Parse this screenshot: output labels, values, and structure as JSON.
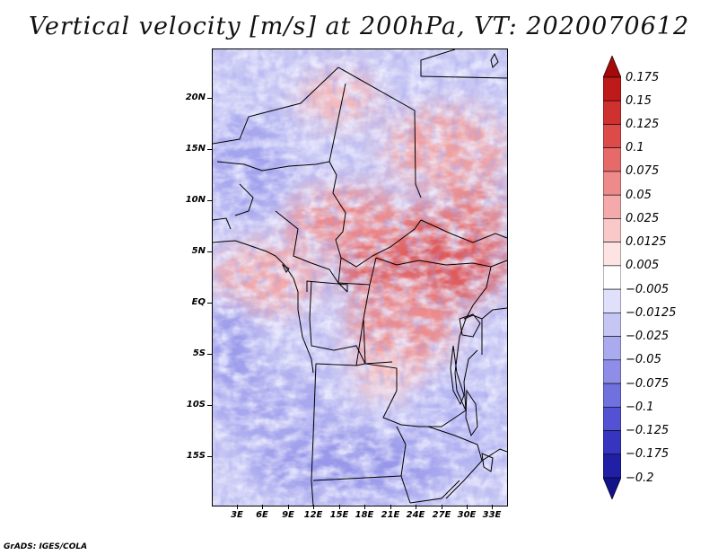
{
  "title": "Vertical velocity [m/s] at 200hPa, VT: 2020070612",
  "credit": "GrADS: IGES/COLA",
  "y_axis": [
    "20N",
    "15N",
    "10N",
    "5N",
    "EQ",
    "5S",
    "10S",
    "15S"
  ],
  "x_axis": [
    "3E",
    "6E",
    "9E",
    "12E",
    "15E",
    "18E",
    "21E",
    "24E",
    "27E",
    "30E",
    "33E"
  ],
  "colorbar": {
    "labels": [
      "0.175",
      "0.15",
      "0.125",
      "0.1",
      "0.075",
      "0.05",
      "0.025",
      "0.0125",
      "0.005",
      "−0.005",
      "−0.0125",
      "−0.025",
      "−0.05",
      "−0.075",
      "−0.1",
      "−0.125",
      "−0.175",
      "−0.2"
    ],
    "colors": [
      "#a50a0a",
      "#be1a1a",
      "#cf3030",
      "#dc4a4a",
      "#e66a6a",
      "#ee8a8a",
      "#f4aaaa",
      "#f9c8c8",
      "#fde3e3",
      "#ffffff",
      "#e0e0fb",
      "#c6c6f5",
      "#aaaaef",
      "#8e8ee8",
      "#7070de",
      "#5252d2",
      "#3535bf",
      "#2020a6",
      "#12128a"
    ]
  }
}
